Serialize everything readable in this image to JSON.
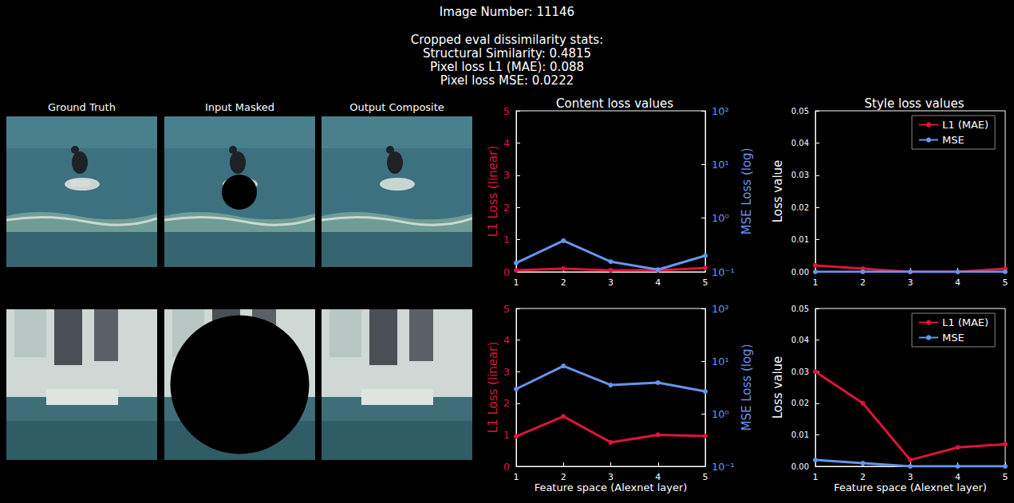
{
  "header": {
    "title": "Image Number: 11146",
    "stats": [
      "Cropped eval dissimilarity stats:",
      "Structural Similarity: 0.4815",
      "Pixel loss L1 (MAE): 0.088",
      "Pixel loss MSE: 0.0222"
    ]
  },
  "images": {
    "columns": [
      "Ground Truth",
      "Input Masked",
      "Output Composite"
    ]
  },
  "chart_data": [
    {
      "type": "line",
      "title": "Content loss values",
      "y_label": "L1 Loss (linear)",
      "y2_label": "MSE Loss (log)",
      "x": [
        1,
        2,
        3,
        4,
        5
      ],
      "xlim": [
        1,
        5
      ],
      "xticks": [
        1,
        2,
        3,
        4,
        5
      ],
      "ylim": [
        0,
        5
      ],
      "yticks": [
        0,
        1,
        2,
        3,
        4,
        5
      ],
      "y2lim": [
        0.1,
        100
      ],
      "y2ticks": [
        {
          "value": 0.1,
          "label": "10⁻¹"
        },
        {
          "value": 1,
          "label": "10⁰"
        },
        {
          "value": 10,
          "label": "10¹"
        },
        {
          "value": 100,
          "label": "10²"
        }
      ],
      "log": "y2",
      "grid": false,
      "series": [
        {
          "color": "#dc143c",
          "marker": "circle",
          "values": [
            0.05,
            0.1,
            0.05,
            0.05,
            0.12
          ]
        },
        {
          "color": "#6495ed",
          "marker": "circle",
          "axis": "y2",
          "values": [
            0.146,
            0.38,
            0.155,
            0.11,
            0.2
          ]
        }
      ]
    },
    {
      "type": "line",
      "title": "Style loss values",
      "y_label": "Loss value",
      "x": [
        1,
        2,
        3,
        4,
        5
      ],
      "xlim": [
        1,
        5
      ],
      "xticks": [
        1,
        2,
        3,
        4,
        5
      ],
      "ylim": [
        0,
        0.05
      ],
      "yticks": [
        {
          "value": 0,
          "label": "0.00"
        },
        {
          "value": 0.01,
          "label": "0.01"
        },
        {
          "value": 0.02,
          "label": "0.02"
        },
        {
          "value": 0.03,
          "label": "0.03"
        },
        {
          "value": 0.04,
          "label": "0.04"
        },
        {
          "value": 0.05,
          "label": "0.05"
        }
      ],
      "grid": false,
      "legend": "upper right",
      "series": [
        {
          "name": "L1 (MAE)",
          "color": "#dc143c",
          "marker": "circle",
          "values": [
            0.002,
            0.001,
            0,
            0,
            0.001
          ]
        },
        {
          "name": "MSE",
          "color": "#6495ed",
          "marker": "circle",
          "values": [
            0,
            0,
            0,
            0,
            0
          ]
        }
      ]
    },
    {
      "type": "line",
      "x_label": "Feature space (Alexnet layer)",
      "y_label": "L1 Loss (linear)",
      "y2_label": "MSE Loss (log)",
      "x": [
        1,
        2,
        3,
        4,
        5
      ],
      "xlim": [
        1,
        5
      ],
      "xticks": [
        1,
        2,
        3,
        4,
        5
      ],
      "ylim": [
        0,
        5
      ],
      "yticks": [
        0,
        1,
        2,
        3,
        4,
        5
      ],
      "y2lim": [
        0.1,
        100
      ],
      "y2ticks": [
        {
          "value": 0.1,
          "label": "10⁻¹"
        },
        {
          "value": 1,
          "label": "10⁰"
        },
        {
          "value": 10,
          "label": "10¹"
        },
        {
          "value": 100,
          "label": "10²"
        }
      ],
      "log": "y2",
      "grid": false,
      "series": [
        {
          "color": "#dc143c",
          "marker": "circle",
          "values": [
            0.95,
            1.58,
            0.76,
            1.0,
            0.96
          ]
        },
        {
          "color": "#6495ed",
          "marker": "circle",
          "axis": "y2",
          "values": [
            2.95,
            8.1,
            3.5,
            3.9,
            2.65
          ]
        }
      ]
    },
    {
      "type": "line",
      "x_label": "Feature space (Alexnet layer)",
      "y_label": "Loss value",
      "x": [
        1,
        2,
        3,
        4,
        5
      ],
      "xlim": [
        1,
        5
      ],
      "xticks": [
        1,
        2,
        3,
        4,
        5
      ],
      "ylim": [
        0,
        0.05
      ],
      "yticks": [
        {
          "value": 0,
          "label": "0.00"
        },
        {
          "value": 0.01,
          "label": "0.01"
        },
        {
          "value": 0.02,
          "label": "0.02"
        },
        {
          "value": 0.03,
          "label": "0.03"
        },
        {
          "value": 0.04,
          "label": "0.04"
        },
        {
          "value": 0.05,
          "label": "0.05"
        }
      ],
      "grid": false,
      "legend": "upper right",
      "series": [
        {
          "name": "L1 (MAE)",
          "color": "#dc143c",
          "marker": "circle",
          "values": [
            0.03,
            0.02,
            0.002,
            0.006,
            0.007
          ]
        },
        {
          "name": "MSE",
          "color": "#6495ed",
          "marker": "circle",
          "values": [
            0.002,
            0.001,
            0,
            0,
            0
          ]
        }
      ]
    }
  ]
}
